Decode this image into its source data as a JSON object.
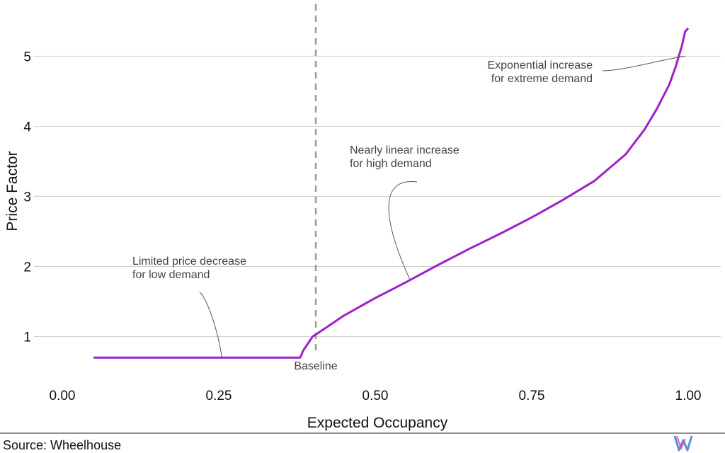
{
  "chart_data": {
    "type": "line",
    "xlabel": "Expected Occupancy",
    "ylabel": "Price Factor",
    "xlim": [
      0,
      1
    ],
    "ylim": [
      0.45,
      5.6
    ],
    "x_ticks": [
      "0.00",
      "0.25",
      "0.50",
      "0.75",
      "1.00"
    ],
    "y_ticks": [
      "1",
      "2",
      "3",
      "4",
      "5"
    ],
    "grid": "horizontal",
    "series": [
      {
        "color": "#a020c8",
        "x": [
          0.05,
          0.1,
          0.15,
          0.2,
          0.25,
          0.3,
          0.35,
          0.38,
          0.385,
          0.39,
          0.4,
          0.42,
          0.45,
          0.5,
          0.55,
          0.6,
          0.65,
          0.7,
          0.75,
          0.8,
          0.85,
          0.9,
          0.93,
          0.95,
          0.97,
          0.98,
          0.99,
          0.995,
          1.0
        ],
        "values": [
          0.7,
          0.7,
          0.7,
          0.7,
          0.7,
          0.7,
          0.7,
          0.7,
          0.8,
          0.87,
          1.0,
          1.12,
          1.3,
          1.55,
          1.78,
          2.02,
          2.25,
          2.47,
          2.7,
          2.95,
          3.22,
          3.6,
          3.95,
          4.25,
          4.6,
          4.85,
          5.15,
          5.35,
          5.4
        ]
      }
    ],
    "reference_line": {
      "x": 0.405,
      "label": "Baseline",
      "color": "#999999"
    },
    "annotations": [
      {
        "lines": [
          "Limited price decrease",
          "for low demand"
        ],
        "point": [
          0.255,
          0.7
        ]
      },
      {
        "lines": [
          "Nearly linear increase",
          "for high demand"
        ],
        "point": [
          0.555,
          1.82
        ]
      },
      {
        "lines": [
          "Exponential increase",
          "for extreme demand"
        ],
        "point": [
          0.995,
          5.0
        ]
      }
    ]
  },
  "footer": {
    "source": "Source: Wheelhouse"
  }
}
